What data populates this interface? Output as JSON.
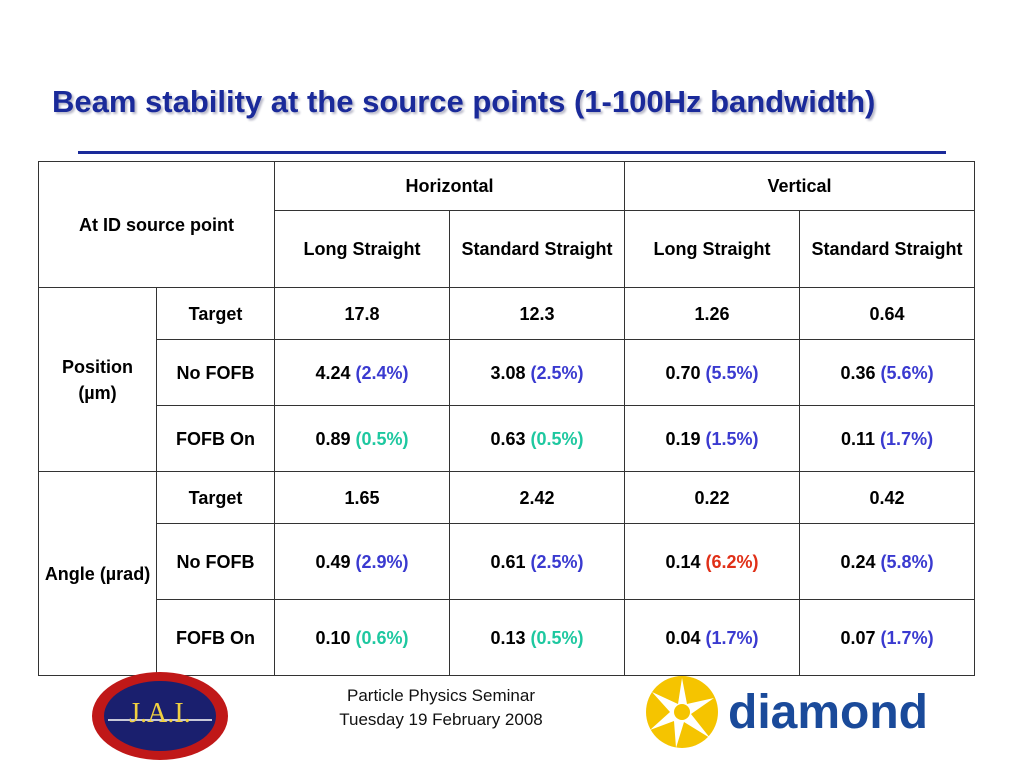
{
  "title": "Beam stability at the source points (1-100Hz bandwidth)",
  "table": {
    "corner_label": "At ID source point",
    "groups": [
      "Horizontal",
      "Vertical"
    ],
    "subheaders": [
      "Long Straight",
      "Standard Straight",
      "Long Straight",
      "Standard Straight"
    ],
    "sections": [
      {
        "label": "Position (µm)",
        "rows": [
          {
            "label": "Target",
            "cells": [
              {
                "value": "17.8",
                "pct": ""
              },
              {
                "value": "12.3",
                "pct": ""
              },
              {
                "value": "1.26",
                "pct": ""
              },
              {
                "value": "0.64",
                "pct": ""
              }
            ]
          },
          {
            "label": "No FOFB",
            "cells": [
              {
                "value": "4.24",
                "pct": "(2.4%)"
              },
              {
                "value": "3.08",
                "pct": "(2.5%)"
              },
              {
                "value": "0.70",
                "pct": "(5.5%)"
              },
              {
                "value": "0.36",
                "pct": "(5.6%)"
              }
            ]
          },
          {
            "label": "FOFB On",
            "cells": [
              {
                "value": "0.89",
                "pct": "(0.5%)"
              },
              {
                "value": "0.63",
                "pct": "(0.5%)"
              },
              {
                "value": "0.19",
                "pct": "(1.5%)"
              },
              {
                "value": "0.11",
                "pct": "(1.7%)"
              }
            ]
          }
        ]
      },
      {
        "label": "Angle (µrad)",
        "rows": [
          {
            "label": "Target",
            "cells": [
              {
                "value": "1.65",
                "pct": ""
              },
              {
                "value": "2.42",
                "pct": ""
              },
              {
                "value": "0.22",
                "pct": ""
              },
              {
                "value": "0.42",
                "pct": ""
              }
            ]
          },
          {
            "label": "No FOFB",
            "cells": [
              {
                "value": "0.49",
                "pct": "(2.9%)"
              },
              {
                "value": "0.61",
                "pct": "(2.5%)"
              },
              {
                "value": "0.14",
                "pct": "(6.2%)"
              },
              {
                "value": "0.24",
                "pct": "(5.8%)"
              }
            ]
          },
          {
            "label": "FOFB On",
            "cells": [
              {
                "value": "0.10",
                "pct": "(0.6%)"
              },
              {
                "value": "0.13",
                "pct": "(0.5%)"
              },
              {
                "value": "0.04",
                "pct": "(1.7%)"
              },
              {
                "value": "0.07",
                "pct": "(1.7%)"
              }
            ]
          }
        ]
      }
    ],
    "colors": {
      "pct_blue": "#3a3ad0",
      "pct_green": "#1ec8a0",
      "pct_red": "#e03018"
    }
  },
  "footer": {
    "line1": "Particle Physics Seminar",
    "line2": "Tuesday 19 February 2008"
  },
  "logos": {
    "left": "J.A.I.",
    "right": "diamond"
  }
}
